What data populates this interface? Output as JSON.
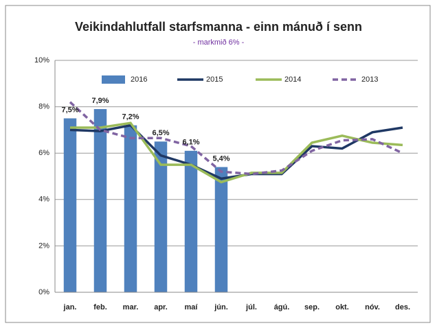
{
  "chart_data": {
    "type": "bar",
    "title": "Veikindahlutfall starfsmanna - einn mánuð í senn",
    "subtitle": "- markmið 6% -",
    "categories": [
      "jan.",
      "feb.",
      "mar.",
      "apr.",
      "maí",
      "jún.",
      "júl.",
      "ágú.",
      "sep.",
      "okt.",
      "nóv.",
      "des."
    ],
    "series": [
      {
        "name": "2016",
        "type": "bar",
        "color": "#4f81bd",
        "values": [
          7.5,
          7.9,
          7.2,
          6.5,
          6.1,
          5.4,
          null,
          null,
          null,
          null,
          null,
          null
        ],
        "value_labels": [
          "7,5%",
          "7,9%",
          "7,2%",
          "6,5%",
          "6,1%",
          "5,4%",
          null,
          null,
          null,
          null,
          null,
          null
        ]
      },
      {
        "name": "2015",
        "type": "line",
        "color": "#1f3864",
        "line_style": "solid",
        "values": [
          7.0,
          6.95,
          7.2,
          5.9,
          5.5,
          4.9,
          5.1,
          5.1,
          6.3,
          6.2,
          6.9,
          7.1
        ]
      },
      {
        "name": "2014",
        "type": "line",
        "color": "#9bbb59",
        "line_style": "solid",
        "values": [
          7.1,
          7.1,
          7.3,
          5.5,
          5.5,
          4.75,
          5.15,
          5.15,
          6.45,
          6.75,
          6.45,
          6.35
        ]
      },
      {
        "name": "2013",
        "type": "line",
        "color": "#8064a2",
        "line_style": "dashed",
        "values": [
          8.2,
          7.0,
          6.65,
          6.65,
          6.3,
          5.2,
          5.1,
          5.25,
          6.1,
          6.55,
          6.6,
          6.0
        ]
      }
    ],
    "ylim": [
      0,
      10
    ],
    "yticks": [
      {
        "value": 0,
        "label": "0%"
      },
      {
        "value": 2,
        "label": "2%"
      },
      {
        "value": 4,
        "label": "4%"
      },
      {
        "value": 6,
        "label": "6%"
      },
      {
        "value": 8,
        "label": "8%"
      },
      {
        "value": 10,
        "label": "10%"
      }
    ],
    "grid": true,
    "legend": "top"
  }
}
